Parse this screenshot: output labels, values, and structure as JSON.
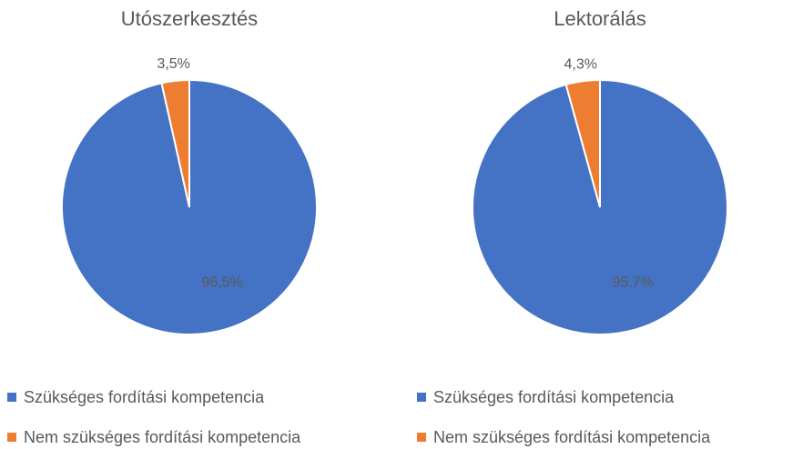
{
  "chart_data": [
    {
      "type": "pie",
      "title": "Utószerkesztés",
      "categories": [
        "Szükséges fordítási kompetencia",
        "Nem szükséges fordítási kompetencia"
      ],
      "values": [
        96.5,
        3.5
      ],
      "value_labels": [
        "96,5%",
        "3,5%"
      ],
      "colors": [
        "#4472c4",
        "#ed7d31"
      ]
    },
    {
      "type": "pie",
      "title": "Lektorálás",
      "categories": [
        "Szükséges fordítási kompetencia",
        "Nem szükséges fordítási kompetencia"
      ],
      "values": [
        95.7,
        4.3
      ],
      "value_labels": [
        "95,7%",
        "4,3%"
      ],
      "colors": [
        "#4472c4",
        "#ed7d31"
      ]
    }
  ]
}
